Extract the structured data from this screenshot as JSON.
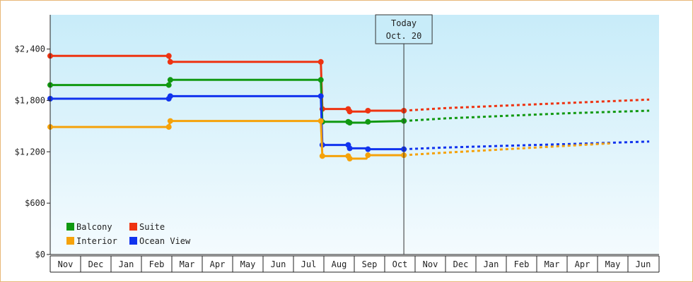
{
  "chart_data": {
    "type": "line",
    "title": "",
    "xlabel": "",
    "ylabel": "",
    "x_axis": {
      "months": [
        "Nov",
        "Dec",
        "Jan",
        "Feb",
        "Mar",
        "Apr",
        "May",
        "Jun",
        "Jul",
        "Aug",
        "Sep",
        "Oct",
        "Nov",
        "Dec",
        "Jan",
        "Feb",
        "Mar",
        "Apr",
        "May",
        "Jun"
      ],
      "range_months": [
        0,
        19.7
      ]
    },
    "y_axis": {
      "ticks": [
        0,
        600,
        1200,
        1800,
        2400
      ],
      "tick_labels": [
        "$0",
        "$600",
        "$1,200",
        "$1,800",
        "$2,400"
      ],
      "range": [
        0,
        2800
      ]
    },
    "grid": false,
    "legend": {
      "placement": "bottom-left",
      "items": [
        {
          "name": "Balcony",
          "color": "#119911"
        },
        {
          "name": "Suite",
          "color": "#ee3311"
        },
        {
          "name": "Interior",
          "color": "#f5a20a"
        },
        {
          "name": "Ocean View",
          "color": "#1133ee"
        }
      ]
    },
    "today": {
      "line1": "Today",
      "line2": "Oct. 20",
      "month_pos": 11.63
    },
    "series": [
      {
        "name": "Suite",
        "color": "#ee3311",
        "points": [
          [
            0,
            2320
          ],
          [
            3.9,
            2320
          ],
          [
            3.95,
            2250
          ],
          [
            8.9,
            2250
          ],
          [
            8.95,
            1700
          ],
          [
            9.8,
            1700
          ],
          [
            9.85,
            1670
          ],
          [
            10.4,
            1670
          ],
          [
            10.45,
            1680
          ],
          [
            11.63,
            1680
          ]
        ],
        "markers": [
          [
            0,
            2320
          ],
          [
            3.9,
            2320
          ],
          [
            3.95,
            2250
          ],
          [
            8.9,
            2250
          ],
          [
            8.95,
            1700
          ],
          [
            9.8,
            1700
          ],
          [
            9.85,
            1670
          ],
          [
            10.45,
            1680
          ],
          [
            11.63,
            1680
          ]
        ],
        "forecast": [
          [
            11.63,
            1680
          ],
          [
            13,
            1710
          ],
          [
            15,
            1740
          ],
          [
            17,
            1770
          ],
          [
            19.7,
            1810
          ]
        ]
      },
      {
        "name": "Balcony",
        "color": "#119911",
        "points": [
          [
            0,
            1980
          ],
          [
            3.9,
            1980
          ],
          [
            3.95,
            2040
          ],
          [
            8.9,
            2040
          ],
          [
            8.95,
            1550
          ],
          [
            9.8,
            1550
          ],
          [
            9.85,
            1540
          ],
          [
            10.4,
            1540
          ],
          [
            10.45,
            1550
          ],
          [
            11.63,
            1560
          ]
        ],
        "markers": [
          [
            0,
            1980
          ],
          [
            3.9,
            1980
          ],
          [
            3.95,
            2040
          ],
          [
            8.9,
            2040
          ],
          [
            8.95,
            1550
          ],
          [
            9.8,
            1550
          ],
          [
            9.85,
            1540
          ],
          [
            10.45,
            1550
          ],
          [
            11.63,
            1560
          ]
        ],
        "forecast": [
          [
            11.63,
            1560
          ],
          [
            13,
            1590
          ],
          [
            15,
            1620
          ],
          [
            17,
            1650
          ],
          [
            19.7,
            1680
          ]
        ]
      },
      {
        "name": "Ocean View",
        "color": "#1133ee",
        "points": [
          [
            0,
            1820
          ],
          [
            3.9,
            1820
          ],
          [
            3.95,
            1850
          ],
          [
            8.9,
            1850
          ],
          [
            8.95,
            1280
          ],
          [
            9.8,
            1280
          ],
          [
            9.85,
            1240
          ],
          [
            10.4,
            1240
          ],
          [
            10.45,
            1230
          ],
          [
            11.63,
            1230
          ]
        ],
        "markers": [
          [
            0,
            1820
          ],
          [
            3.9,
            1820
          ],
          [
            3.95,
            1850
          ],
          [
            8.9,
            1850
          ],
          [
            8.95,
            1280
          ],
          [
            9.8,
            1280
          ],
          [
            9.85,
            1240
          ],
          [
            10.45,
            1230
          ],
          [
            11.63,
            1230
          ]
        ],
        "forecast": [
          [
            11.63,
            1230
          ],
          [
            13,
            1250
          ],
          [
            15,
            1270
          ],
          [
            17,
            1290
          ],
          [
            19.7,
            1320
          ]
        ]
      },
      {
        "name": "Interior",
        "color": "#f5a20a",
        "points": [
          [
            0,
            1490
          ],
          [
            3.9,
            1490
          ],
          [
            3.95,
            1560
          ],
          [
            8.9,
            1560
          ],
          [
            8.95,
            1150
          ],
          [
            9.8,
            1150
          ],
          [
            9.85,
            1120
          ],
          [
            10.4,
            1120
          ],
          [
            10.45,
            1160
          ],
          [
            11.63,
            1160
          ]
        ],
        "markers": [
          [
            0,
            1490
          ],
          [
            3.9,
            1490
          ],
          [
            3.95,
            1560
          ],
          [
            8.9,
            1560
          ],
          [
            8.95,
            1150
          ],
          [
            9.8,
            1150
          ],
          [
            9.85,
            1120
          ],
          [
            10.45,
            1160
          ],
          [
            11.63,
            1160
          ]
        ],
        "forecast": [
          [
            11.63,
            1160
          ],
          [
            13,
            1190
          ],
          [
            15,
            1230
          ],
          [
            17,
            1270
          ],
          [
            18.5,
            1300
          ]
        ]
      }
    ]
  }
}
